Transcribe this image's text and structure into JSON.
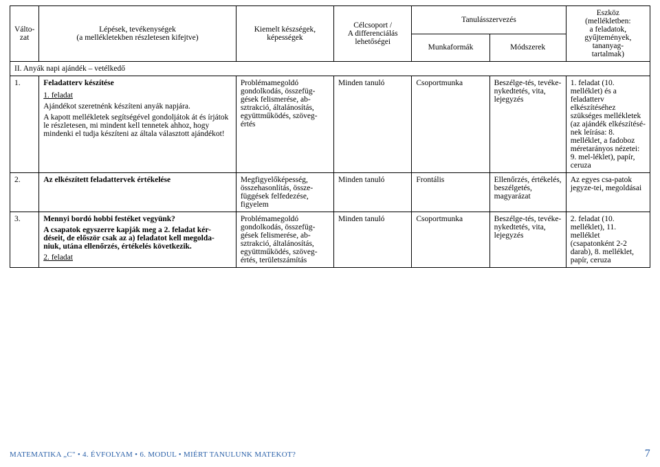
{
  "colwidths": [
    "38",
    "258",
    "128",
    "102",
    "102",
    "100",
    "110"
  ],
  "header": {
    "valtozat": "Válto-\nzat",
    "lepesek": "Lépések, tevékenységek\n(a mellékletekben részletesen kifejtve)",
    "keszsegek": "Kiemelt készségek,\nképességek",
    "celcsoport": "Célcsoport /\nA differenciálás\nlehetőségei",
    "tanulas": "Tanulásszervezés",
    "munkaformak": "Munkaformák",
    "modszerek": "Módszerek",
    "eszkoz": "Eszköz\n(mellékletben:\na feladatok,\ngyűjtemények,\ntananyag-\ntartalmak)"
  },
  "section_title": "II. Anyák napi ajándék – vetélkedő",
  "rows": [
    {
      "n": "1.",
      "steps_title": "Feladatterv készítése",
      "steps_item": "1. feladat",
      "steps_p1": "Ajándékot szeretnénk készíteni anyák napjára.",
      "steps_p2": "A kapott mellékletek segítségével gondoljátok át és írjátok le részletesen, mi mindent kell tennetek ahhoz, hogy mindenki el tudja készíteni az általa választott ajándékot!",
      "skills": "Problémamegoldó gondolkodás, összefüg-gések felismerése, ab-sztrakció, általánosítás, együttműködés, szöveg-értés",
      "group": "Minden tanuló",
      "munka": "Csoportmunka",
      "mod": "Beszélge-tés, tevéke-nykedtetés, vita, lejegyzés",
      "tool": "1. feladat (10. melléklet) és a feladatterv elkészítéséhez szükséges mellékletek (az ajándék elkészítésé-nek leírása: 8. melléklet, a fadoboz méretarányos nézetei: 9. mel-léklet), papír, ceruza"
    },
    {
      "n": "2.",
      "steps_title": "Az elkészített feladattervek értékelése",
      "skills": "Megfigyelőképesség, összehasonlítás, össze-függések felfedezése, figyelem",
      "group": "Minden tanuló",
      "munka": "Frontális",
      "mod": "Ellenőrzés, értékelés, beszélgetés, magyarázat",
      "tool": "Az egyes csa-patok jegyze-tei, megoldásai"
    },
    {
      "n": "3.",
      "steps_title": "Mennyi bordó hobbi festéket vegyünk?",
      "steps_p1a": "A csapatok egyszerre kapják meg a 2. feladat kér-déseit, de először csak az a) feladatot kell megolda-niuk, utána ellenőrzés, értékelés következik.",
      "steps_item3": "2. feladat",
      "skills": "Problémamegoldó gondolkodás, összefüg-gések felismerése, ab-sztrakció, általánosítás, együttműködés, szöveg-értés, területszámítás",
      "group": "Minden tanuló",
      "munka": "Csoportmunka",
      "mod": "Beszélge-tés, tevéke-nykedtetés, vita, lejegyzés",
      "tool": "2. feladat (10. melléklet), 11. melléklet (csapatonként 2-2 darab), 8. melléklet, papír, ceruza"
    }
  ],
  "footer_left": "MATEMATIKA „C\" • 4. ÉVFOLYAM • 6. MODUL • MIÉRT TANULUNK MATEKOT?",
  "footer_page": "7",
  "colors": {
    "footer": "#2a60a8",
    "border": "#000000"
  }
}
